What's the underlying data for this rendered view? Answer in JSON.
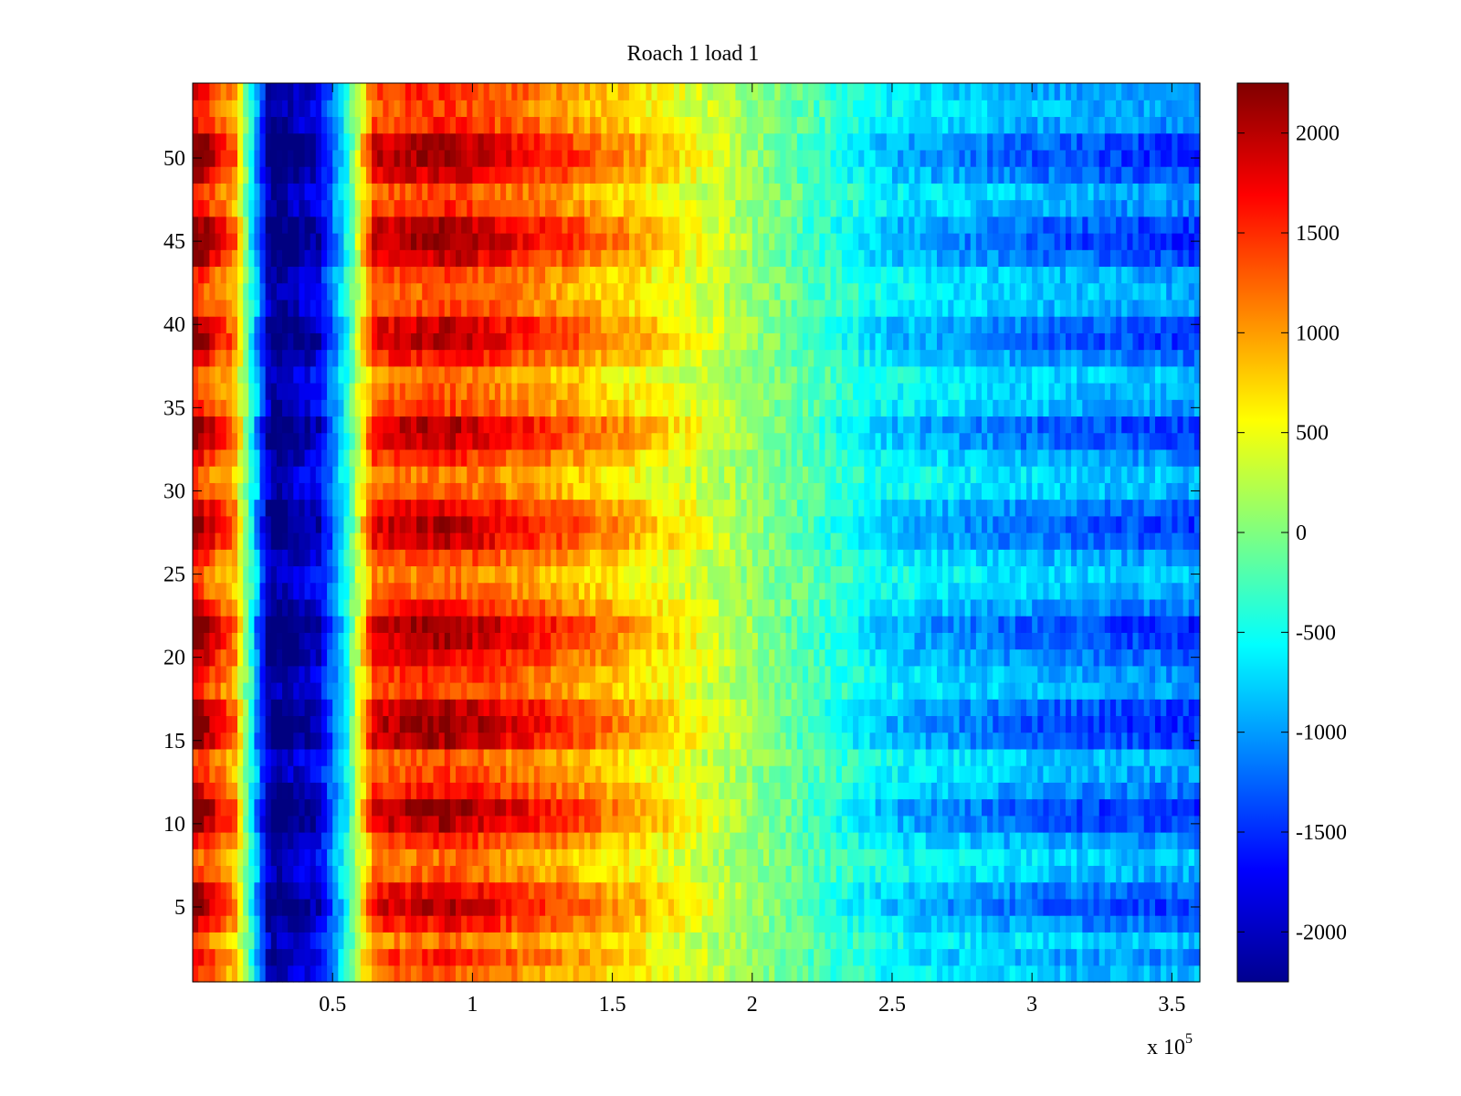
{
  "chart_data": {
    "type": "heatmap",
    "title": "Roach 1 load 1",
    "xlabel": "",
    "ylabel": "",
    "x_multiplier_label": "x 10",
    "x_multiplier_exponent": "5",
    "xlim": [
      0,
      3.6
    ],
    "ylim": [
      0.5,
      54.5
    ],
    "x_ticks": [
      0.5,
      1,
      1.5,
      2,
      2.5,
      3,
      3.5
    ],
    "x_tick_labels": [
      "0.5",
      "1",
      "1.5",
      "2",
      "2.5",
      "3",
      "3.5"
    ],
    "y_ticks": [
      5,
      10,
      15,
      20,
      25,
      30,
      35,
      40,
      45,
      50
    ],
    "y_tick_labels": [
      "5",
      "10",
      "15",
      "20",
      "25",
      "30",
      "35",
      "40",
      "45",
      "50"
    ],
    "colorbar": {
      "range": [
        -2250,
        2250
      ],
      "ticks": [
        2000,
        1500,
        1000,
        500,
        0,
        -500,
        -1000,
        -1500,
        -2000
      ],
      "tick_labels": [
        "2000",
        "1500",
        "1000",
        "500",
        "0",
        "-500",
        "-1000",
        "-1500",
        "-2000"
      ],
      "colormap": "jet"
    },
    "grid": false,
    "rows": 54,
    "x_profile_description_points": [
      {
        "x": 0.0,
        "value": 2000
      },
      {
        "x": 0.15,
        "value": 1000
      },
      {
        "x": 0.28,
        "value": -2200
      },
      {
        "x": 0.45,
        "value": -1800
      },
      {
        "x": 0.55,
        "value": -500
      },
      {
        "x": 0.65,
        "value": 1500
      },
      {
        "x": 0.9,
        "value": 1700
      },
      {
        "x": 1.3,
        "value": 1200
      },
      {
        "x": 1.7,
        "value": 600
      },
      {
        "x": 2.0,
        "value": 100
      },
      {
        "x": 2.5,
        "value": -700
      },
      {
        "x": 3.0,
        "value": -1000
      },
      {
        "x": 3.6,
        "value": -1200
      }
    ],
    "row_intensity": [
      0.3,
      0.5,
      0.2,
      0.6,
      0.9,
      0.7,
      0.3,
      0.2,
      0.5,
      0.9,
      1.0,
      0.6,
      0.4,
      0.3,
      0.9,
      1.0,
      0.9,
      0.4,
      0.5,
      0.7,
      0.9,
      1.0,
      0.6,
      0.3,
      0.2,
      0.4,
      0.8,
      0.9,
      0.7,
      0.3,
      0.2,
      0.5,
      0.8,
      0.9,
      0.4,
      0.3,
      0.2,
      0.6,
      0.9,
      0.8,
      0.4,
      0.3,
      0.4,
      0.8,
      1.0,
      0.9,
      0.5,
      0.4,
      0.8,
      1.0,
      0.9,
      0.5,
      0.4,
      0.5
    ]
  }
}
